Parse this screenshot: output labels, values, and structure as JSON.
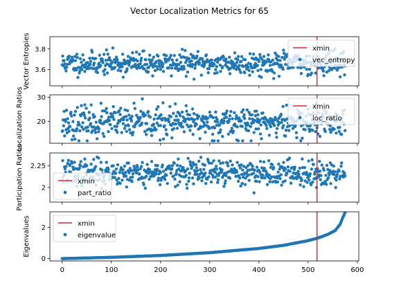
{
  "figure_title": "Vector Localization Metrics for 65",
  "colors": {
    "points": "#1f77b4",
    "xmin_line": "#d62728"
  },
  "chart_data": [
    {
      "type": "scatter",
      "ylabel": "Vector Entropies",
      "legend": [
        "xmin",
        "vec_entropy"
      ],
      "legend_position": "top-right",
      "x_range": [
        0,
        575
      ],
      "xlim": [
        -25,
        603
      ],
      "ylim": [
        3.44,
        3.92
      ],
      "yticks": [
        3.6,
        3.8
      ],
      "y_center": 3.66,
      "y_spread": 0.055,
      "y_min": 3.45,
      "y_max": 3.9,
      "xmin": 518,
      "seed": 11
    },
    {
      "type": "scatter",
      "ylabel": "Localization Ratios",
      "legend": [
        "xmin",
        "loc_ratio"
      ],
      "legend_position": "top-right",
      "x_range": [
        0,
        575
      ],
      "xlim": [
        -25,
        603
      ],
      "ylim": [
        11,
        31
      ],
      "yticks": [
        20,
        30
      ],
      "y_center": 19.5,
      "y_spread": 3.2,
      "y_min": 12,
      "y_max": 30,
      "xmin": 518,
      "seed": 23
    },
    {
      "type": "scatter",
      "ylabel": "Participation Ratios",
      "legend": [
        "xmin",
        "part_ratio"
      ],
      "legend_position": "lower-left",
      "x_range": [
        0,
        575
      ],
      "xlim": [
        -25,
        603
      ],
      "ylim": [
        1.83,
        2.4
      ],
      "yticks": [
        2.0,
        2.25
      ],
      "y_center": 2.17,
      "y_spread": 0.075,
      "y_min": 1.85,
      "y_max": 2.39,
      "xmin": 518,
      "seed": 37
    },
    {
      "type": "scatter",
      "ylabel": "Eigenvalues",
      "legend": [
        "xmin",
        "eigenvalue"
      ],
      "legend_position": "upper-left",
      "x_range": [
        0,
        575
      ],
      "xlim": [
        -25,
        603
      ],
      "ylim": [
        -0.15,
        3.0
      ],
      "yticks": [
        0,
        2
      ],
      "curve_x": [
        0,
        100,
        200,
        300,
        400,
        450,
        500,
        520,
        540,
        555,
        565,
        570,
        575
      ],
      "curve_y": [
        0.0,
        0.08,
        0.2,
        0.38,
        0.65,
        0.85,
        1.15,
        1.32,
        1.55,
        1.8,
        2.2,
        2.6,
        2.95
      ],
      "xmin": 518,
      "xlabel": "",
      "xticks": [
        0,
        100,
        200,
        300,
        400,
        500,
        600
      ]
    }
  ]
}
